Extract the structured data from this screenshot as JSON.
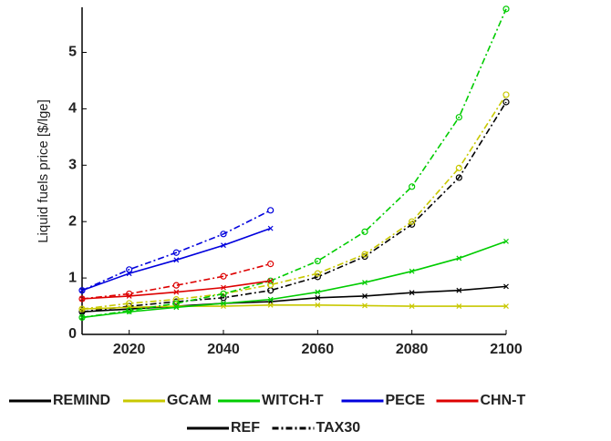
{
  "chart_data": {
    "type": "line",
    "y_label": "Liquid fuels price [$/lge]",
    "x": [
      2010,
      2020,
      2030,
      2040,
      2050,
      2060,
      2070,
      2080,
      2090,
      2100
    ],
    "xlim": [
      2010,
      2100
    ],
    "xticks": [
      2020,
      2040,
      2060,
      2080,
      2100
    ],
    "ylim": [
      0,
      5.8
    ],
    "yticks": [
      0,
      1,
      2,
      3,
      4,
      5
    ],
    "scenarios": [
      {
        "name": "REF",
        "style": "solid",
        "marker": "x"
      },
      {
        "name": "TAX30",
        "style": "dashdot",
        "marker": "circle"
      }
    ],
    "series": [
      {
        "name": "REMIND",
        "color": "#000000",
        "values": [
          [
            0.4,
            0.45,
            0.5,
            0.55,
            0.58,
            0.65,
            0.68,
            0.74,
            0.78,
            0.85
          ],
          [
            0.4,
            0.5,
            0.58,
            0.65,
            0.78,
            1.02,
            1.38,
            1.95,
            2.78,
            4.12
          ]
        ]
      },
      {
        "name": "GCAM",
        "color": "#c8c800",
        "values": [
          [
            0.45,
            0.48,
            0.5,
            0.5,
            0.52,
            0.52,
            0.51,
            0.5,
            0.5,
            0.5
          ],
          [
            0.45,
            0.55,
            0.62,
            0.72,
            0.88,
            1.08,
            1.42,
            2.0,
            2.95,
            4.25
          ]
        ]
      },
      {
        "name": "WITCH-T",
        "color": "#00cc00",
        "values": [
          [
            0.3,
            0.4,
            0.48,
            0.55,
            0.62,
            0.75,
            0.92,
            1.12,
            1.35,
            1.65
          ],
          [
            0.3,
            0.42,
            0.55,
            0.72,
            0.95,
            1.3,
            1.82,
            2.62,
            3.85,
            5.77
          ]
        ]
      },
      {
        "name": "PECE",
        "color": "#0000dd",
        "values": [
          [
            0.78,
            1.08,
            1.32,
            1.58,
            1.88,
            null,
            null,
            null,
            null,
            null
          ],
          [
            0.78,
            1.15,
            1.45,
            1.78,
            2.2,
            null,
            null,
            null,
            null,
            null
          ]
        ]
      },
      {
        "name": "CHN-T",
        "color": "#dd0000",
        "values": [
          [
            0.63,
            0.68,
            0.75,
            0.83,
            0.95,
            null,
            null,
            null,
            null,
            null
          ],
          [
            0.63,
            0.72,
            0.87,
            1.03,
            1.25,
            null,
            null,
            null,
            null,
            null
          ]
        ]
      }
    ]
  }
}
